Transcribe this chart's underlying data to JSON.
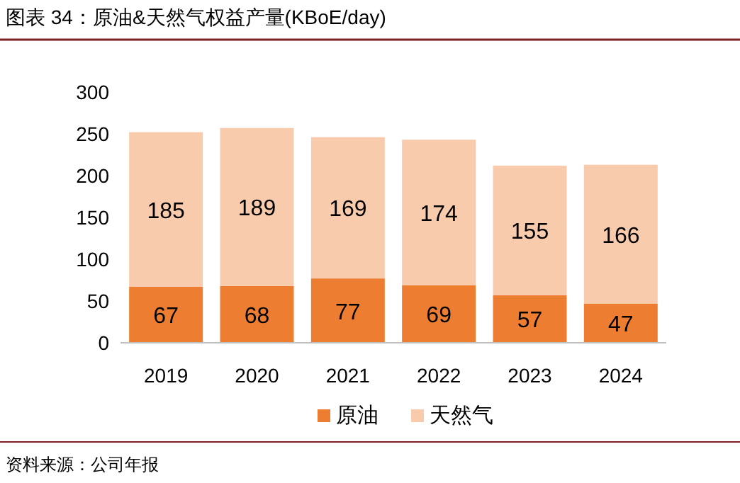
{
  "chart_data": {
    "type": "bar",
    "stacked": true,
    "title": "图表 34：原油&天然气权益产量(KBoE/day)",
    "categories": [
      "2019",
      "2020",
      "2021",
      "2022",
      "2023",
      "2024"
    ],
    "series": [
      {
        "name": "原油",
        "color": "#ed7d31",
        "values": [
          67,
          68,
          77,
          69,
          57,
          47
        ]
      },
      {
        "name": "天然气",
        "color": "#f8cbad",
        "values": [
          185,
          189,
          169,
          174,
          155,
          166
        ]
      }
    ],
    "ylim": [
      0,
      300
    ],
    "yticks": [
      0,
      50,
      100,
      150,
      200,
      250,
      300
    ],
    "data_labels": true,
    "legend": "bottom",
    "grid": false,
    "annotations": [
      "资料来源：公司年报"
    ]
  }
}
